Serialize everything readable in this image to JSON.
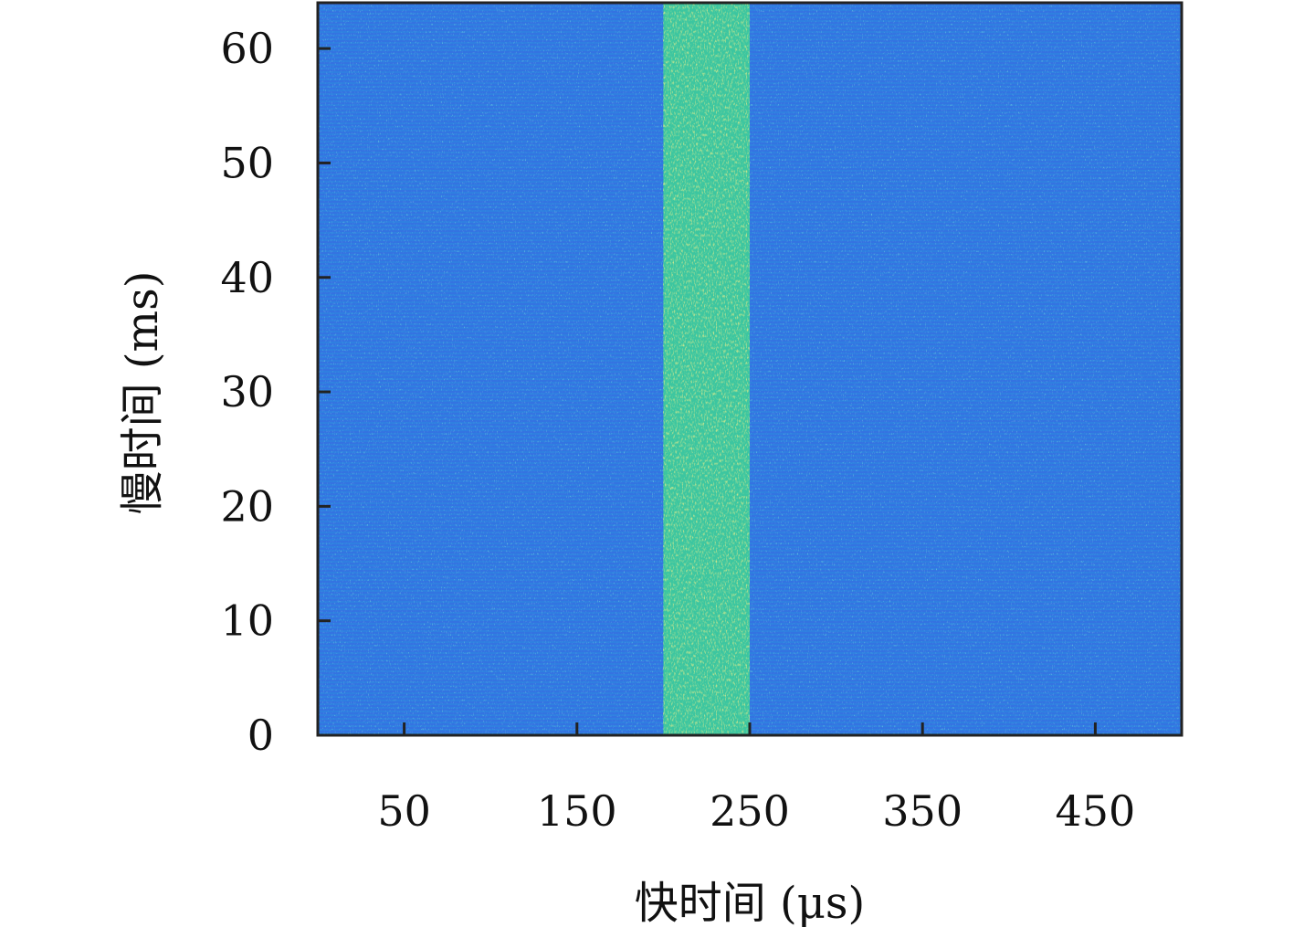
{
  "chart_data": {
    "type": "heatmap",
    "title": "",
    "xlabel": "快时间 (μs)",
    "ylabel": "慢时间 (ms)",
    "xlim": [
      0,
      500
    ],
    "ylim": [
      0,
      64
    ],
    "x_ticks": [
      50,
      150,
      250,
      350,
      450
    ],
    "y_ticks": [
      0,
      10,
      20,
      30,
      40,
      50,
      60
    ],
    "colormap": "parula",
    "background_color": "#2f7fe0",
    "band": {
      "name": "",
      "x_start": 200,
      "x_end": 250,
      "color": "#3cc6a0"
    },
    "grid": false,
    "legend": "none"
  }
}
